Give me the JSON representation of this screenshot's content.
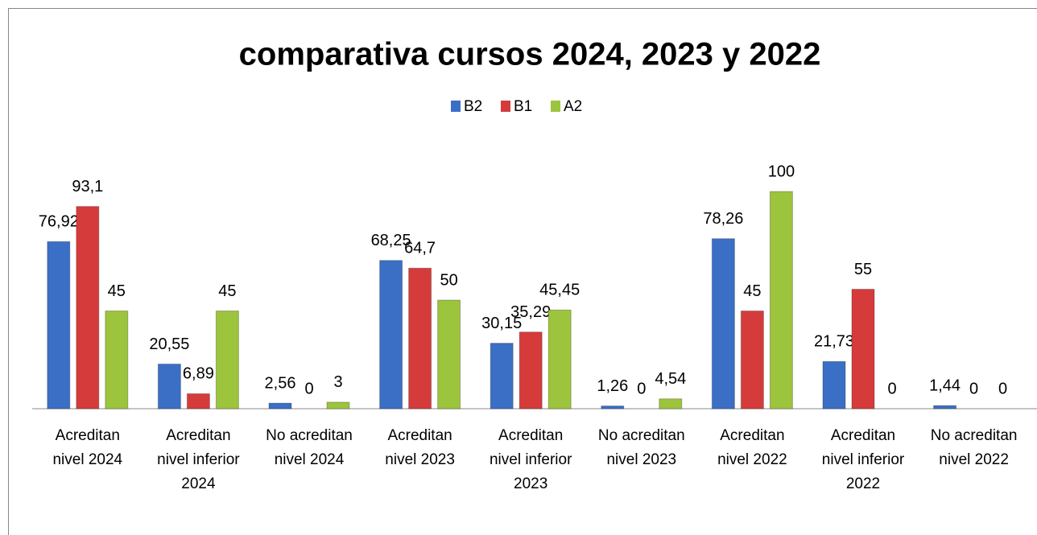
{
  "chart_data": {
    "type": "bar",
    "title": "comparativa cursos 2024, 2023 y 2022",
    "categories": [
      "Acreditan nivel 2024",
      "Acreditan nivel inferior 2024",
      "No acreditan nivel 2024",
      "Acreditan nivel 2023",
      "Acreditan nivel inferior 2023",
      "No acreditan nivel 2023",
      "Acreditan nivel 2022",
      "Acreditan nivel inferior 2022",
      "No acreditan nivel 2022"
    ],
    "series": [
      {
        "name": "B2",
        "color": "#3b6fc6",
        "values": [
          76.92,
          20.55,
          2.56,
          68.25,
          30.15,
          1.26,
          78.26,
          21.73,
          1.44
        ],
        "value_labels": [
          "76,92",
          "20,55",
          "2,56",
          "68,25",
          "30,15",
          "1,26",
          "78,26",
          "21,73",
          "1,44"
        ]
      },
      {
        "name": "B1",
        "color": "#d63b3b",
        "values": [
          93.1,
          6.89,
          0,
          64.7,
          35.29,
          0,
          45,
          55,
          0
        ],
        "value_labels": [
          "93,1",
          "6,89",
          "0",
          "64,7",
          "35,29",
          "0",
          "45",
          "55",
          "0"
        ]
      },
      {
        "name": "A2",
        "color": "#9cc43c",
        "values": [
          45,
          45,
          3,
          50,
          45.45,
          4.54,
          100,
          0,
          0
        ],
        "value_labels": [
          "45",
          "45",
          "3",
          "50",
          "45,45",
          "4,54",
          "100",
          "0",
          "0"
        ]
      }
    ],
    "ylim": [
      0,
      100
    ],
    "legend": "top"
  }
}
